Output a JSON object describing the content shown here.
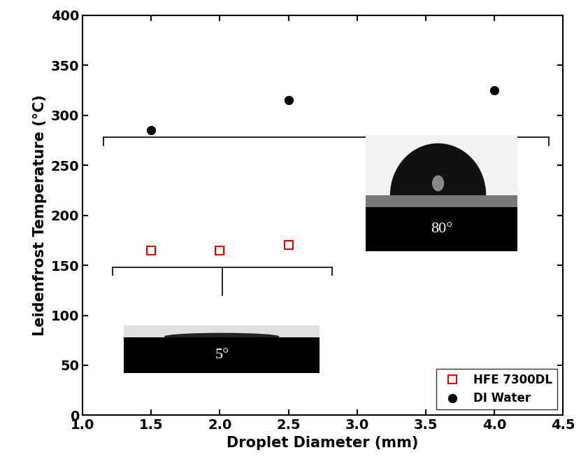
{
  "chart_data": {
    "type": "scatter",
    "x_label": "Droplet Diameter (mm)",
    "y_label": "Leidenfrost Temperature (°C)",
    "xlim": [
      1.0,
      4.5
    ],
    "xticks": [
      {
        "value": 1.0,
        "label": "1.0"
      },
      {
        "value": 1.5,
        "label": "1.5"
      },
      {
        "value": 2.0,
        "label": "2.0"
      },
      {
        "value": 2.5,
        "label": "2.5"
      },
      {
        "value": 3.0,
        "label": "3.0"
      },
      {
        "value": 3.5,
        "label": "3.5"
      },
      {
        "value": 4.0,
        "label": "4.0"
      },
      {
        "value": 4.5,
        "label": "4.5"
      }
    ],
    "ylim": [
      0,
      400
    ],
    "yticks": [
      0,
      50,
      100,
      150,
      200,
      250,
      300,
      350,
      400
    ],
    "grid": false,
    "legend": "lower right",
    "series": [
      {
        "name": "HFE 7300DL",
        "color": "#e00000",
        "marker": "square_open",
        "x": [
          1.5,
          2.0,
          2.5
        ],
        "values": [
          165,
          165,
          170
        ]
      },
      {
        "name": "DI Water",
        "color": "#000000",
        "marker": "circle",
        "x": [
          1.5,
          2.5,
          4.0
        ],
        "values": [
          285,
          315,
          325
        ]
      }
    ],
    "annotations": [
      {
        "text": "80°"
      },
      {
        "text": "5°"
      }
    ]
  }
}
